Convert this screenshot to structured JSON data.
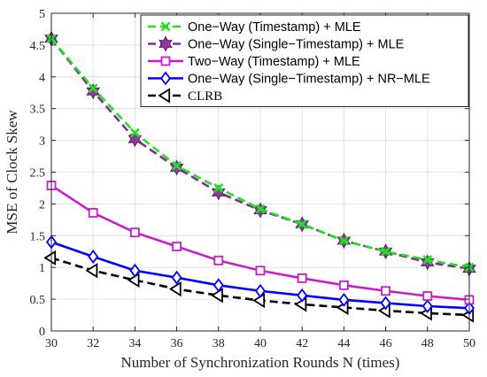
{
  "chart_data": {
    "type": "line",
    "xlabel": "Number of Synchronization Rounds N (times)",
    "ylabel": "MSE of Clock Skew",
    "xlim": [
      30,
      50
    ],
    "ylim": [
      0,
      5
    ],
    "xticks": [
      30,
      32,
      34,
      36,
      38,
      40,
      42,
      44,
      46,
      48,
      50
    ],
    "yticks": [
      0,
      0.5,
      1,
      1.5,
      2,
      2.5,
      3,
      3.5,
      4,
      4.5,
      5
    ],
    "ytick_labels": [
      "0",
      "0.5",
      "1",
      "1.5",
      "2",
      "2.5",
      "3",
      "3.5",
      "4",
      "4.5",
      "5"
    ],
    "grid": true,
    "legend_position": "top-right",
    "x": [
      30,
      32,
      34,
      36,
      38,
      40,
      42,
      44,
      46,
      48,
      50
    ],
    "series": [
      {
        "name": "One−Way (Timestamp) + MLE",
        "color": "#22e022",
        "marker": "x",
        "line_style": "dashed",
        "values": [
          4.6,
          3.82,
          3.12,
          2.6,
          2.25,
          1.92,
          1.68,
          1.42,
          1.25,
          1.12,
          1.0
        ]
      },
      {
        "name": "One−Way (Single−Timestamp) + MLE",
        "color": "#7e2f8e",
        "marker": "hexagram",
        "line_style": "dashed",
        "values": [
          4.6,
          3.77,
          3.02,
          2.57,
          2.18,
          1.9,
          1.68,
          1.42,
          1.25,
          1.08,
          0.98
        ]
      },
      {
        "name": "Two−Way (Timestamp) + MLE",
        "color": "#c81ec8",
        "marker": "square",
        "line_style": "solid",
        "values": [
          2.29,
          1.86,
          1.55,
          1.33,
          1.11,
          0.95,
          0.83,
          0.72,
          0.63,
          0.55,
          0.49
        ]
      },
      {
        "name": "One−Way (Single−Timestamp) + NR−MLE",
        "color": "#0000ff",
        "marker": "diamond",
        "line_style": "solid",
        "values": [
          1.4,
          1.17,
          0.95,
          0.84,
          0.72,
          0.63,
          0.56,
          0.49,
          0.44,
          0.39,
          0.36
        ]
      },
      {
        "name": "CLRB",
        "color": "#000000",
        "marker": "triangle-left",
        "line_style": "dashed",
        "values": [
          1.15,
          0.95,
          0.8,
          0.66,
          0.56,
          0.48,
          0.42,
          0.37,
          0.32,
          0.28,
          0.25
        ]
      }
    ]
  }
}
